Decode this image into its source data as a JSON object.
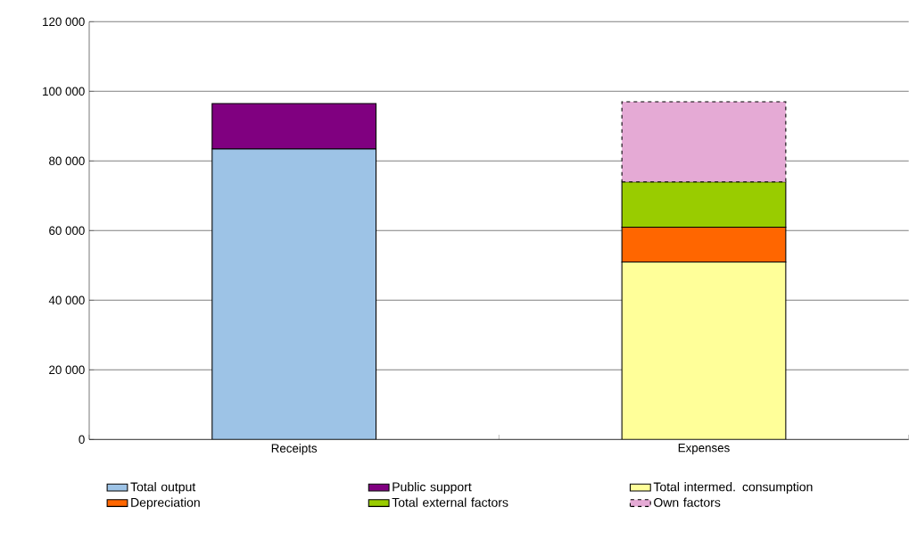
{
  "chart_data": {
    "type": "bar",
    "stacked": true,
    "categories": [
      "Receipts",
      "Expenses"
    ],
    "series": [
      {
        "name": "Total output",
        "color": "#9dc3e6",
        "values": [
          83500,
          null
        ]
      },
      {
        "name": "Public support",
        "color": "#800080",
        "values": [
          13000,
          null
        ]
      },
      {
        "name": "Total intermed. consumption",
        "color": "#ffff99",
        "values": [
          null,
          51000
        ]
      },
      {
        "name": "Depreciation",
        "color": "#ff6600",
        "values": [
          null,
          10000
        ]
      },
      {
        "name": "Total external factors",
        "color": "#99cc00",
        "values": [
          null,
          13000
        ]
      },
      {
        "name": "Own factors",
        "color": "#e5aad5",
        "line_style": "dashed",
        "values": [
          null,
          23000
        ]
      }
    ],
    "ylim": [
      0,
      120000
    ],
    "yticks": [
      {
        "value": 0,
        "label": "0"
      },
      {
        "value": 20000,
        "label": "20 000"
      },
      {
        "value": 40000,
        "label": "40 000"
      },
      {
        "value": 60000,
        "label": "60 000"
      },
      {
        "value": 80000,
        "label": "80 000"
      },
      {
        "value": 100000,
        "label": "100 000"
      },
      {
        "value": 120000,
        "label": "120 000"
      }
    ],
    "grid": "y",
    "legend": "bottom"
  }
}
